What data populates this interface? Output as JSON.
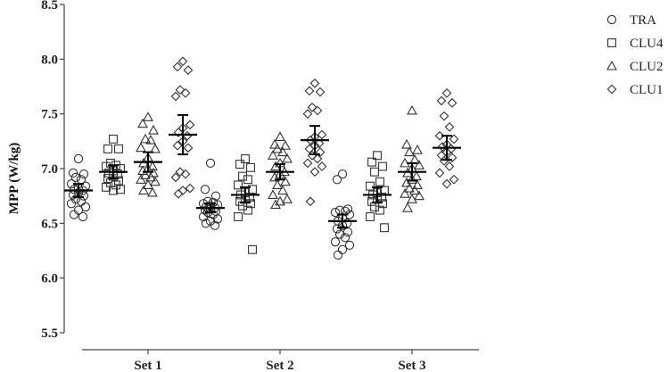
{
  "chart_data": {
    "type": "scatter",
    "title": "",
    "xlabel": "",
    "ylabel": "MPP (W/kg)",
    "ylim": [
      5.5,
      8.5
    ],
    "yticks": [
      "5.5",
      "6.0",
      "6.5",
      "7.0",
      "7.5",
      "8.0",
      "8.5"
    ],
    "categories": [
      "Set 1",
      "Set 2",
      "Set 3"
    ],
    "grid": false,
    "legend_position": "top-right",
    "legend": [
      {
        "name": "TRA",
        "marker": "circle"
      },
      {
        "name": "CLU4",
        "marker": "square"
      },
      {
        "name": "CLU2",
        "marker": "triangle"
      },
      {
        "name": "CLU1",
        "marker": "diamond"
      }
    ],
    "series": [
      {
        "name": "TRA",
        "marker": "circle",
        "mean": [
          6.8,
          6.64,
          6.52
        ],
        "error": [
          0.06,
          0.04,
          0.06
        ],
        "points": [
          [
            7.09,
            6.96,
            6.95,
            6.92,
            6.9,
            6.86,
            6.84,
            6.82,
            6.81,
            6.8,
            6.78,
            6.76,
            6.75,
            6.72,
            6.7,
            6.68,
            6.65,
            6.62,
            6.58,
            6.56
          ],
          [
            7.05,
            6.81,
            6.75,
            6.7,
            6.69,
            6.68,
            6.67,
            6.66,
            6.65,
            6.64,
            6.63,
            6.62,
            6.61,
            6.6,
            6.58,
            6.56,
            6.54,
            6.52,
            6.5,
            6.48
          ],
          [
            6.95,
            6.9,
            6.63,
            6.62,
            6.61,
            6.6,
            6.58,
            6.55,
            6.52,
            6.5,
            6.48,
            6.45,
            6.42,
            6.4,
            6.37,
            6.33,
            6.3,
            6.26,
            6.21
          ]
        ]
      },
      {
        "name": "CLU4",
        "marker": "square",
        "mean": [
          6.97,
          6.76,
          6.76
        ],
        "error": [
          0.06,
          0.07,
          0.07
        ],
        "points": [
          [
            7.27,
            7.18,
            7.18,
            7.05,
            7.03,
            7.02,
            7.0,
            6.98,
            6.96,
            6.95,
            6.93,
            6.91,
            6.89,
            6.87,
            6.85,
            6.83,
            6.81,
            6.8
          ],
          [
            7.09,
            7.04,
            7.01,
            6.93,
            6.9,
            6.85,
            6.81,
            6.78,
            6.76,
            6.74,
            6.72,
            6.7,
            6.68,
            6.66,
            6.62,
            6.56,
            6.26
          ],
          [
            7.12,
            7.06,
            7.02,
            6.97,
            6.88,
            6.84,
            6.8,
            6.78,
            6.76,
            6.74,
            6.72,
            6.7,
            6.68,
            6.65,
            6.62,
            6.56,
            6.46
          ]
        ]
      },
      {
        "name": "CLU2",
        "marker": "triangle",
        "mean": [
          7.06,
          6.97,
          6.97
        ],
        "error": [
          0.09,
          0.07,
          0.08
        ],
        "points": [
          [
            7.47,
            7.41,
            7.35,
            7.27,
            7.26,
            7.19,
            7.18,
            7.1,
            7.05,
            7.02,
            7.0,
            6.98,
            6.96,
            6.94,
            6.92,
            6.9,
            6.88,
            6.85,
            6.8,
            6.78
          ],
          [
            7.29,
            7.22,
            7.21,
            7.18,
            7.15,
            7.12,
            7.09,
            7.05,
            7.02,
            6.97,
            6.95,
            6.92,
            6.88,
            6.85,
            6.8,
            6.76,
            6.72,
            6.7,
            6.67
          ],
          [
            7.53,
            7.22,
            7.17,
            7.15,
            7.08,
            7.05,
            7.03,
            7.0,
            6.96,
            6.93,
            6.9,
            6.87,
            6.85,
            6.82,
            6.8,
            6.77,
            6.75,
            6.72,
            6.64
          ]
        ]
      },
      {
        "name": "CLU1",
        "marker": "diamond",
        "mean": [
          7.31,
          7.26,
          7.19
        ],
        "error": [
          0.18,
          0.13,
          0.11
        ],
        "points": [
          [
            7.98,
            7.93,
            7.9,
            7.72,
            7.69,
            7.66,
            7.4,
            7.37,
            7.33,
            7.3,
            7.25,
            7.21,
            7.19,
            6.97,
            6.95,
            6.92,
            6.82,
            6.8,
            6.77
          ],
          [
            7.78,
            7.71,
            7.7,
            7.56,
            7.53,
            7.5,
            7.31,
            7.29,
            7.26,
            7.23,
            7.21,
            7.18,
            7.15,
            7.12,
            7.09,
            7.05,
            7.02,
            6.97,
            6.7
          ],
          [
            7.69,
            7.62,
            7.6,
            7.48,
            7.38,
            7.3,
            7.27,
            7.22,
            7.2,
            7.18,
            7.15,
            7.12,
            7.1,
            7.07,
            7.02,
            6.96,
            6.9,
            6.86
          ]
        ]
      }
    ]
  }
}
